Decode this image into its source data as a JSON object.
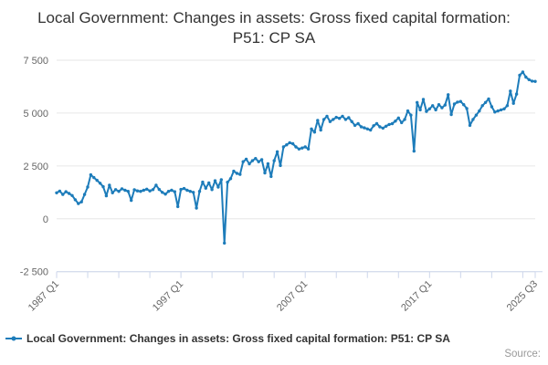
{
  "title": "Local Government: Changes in assets: Gross fixed capital formation: P51: CP SA",
  "legend": {
    "label": "Local Government: Changes in assets: Gross fixed capital formation: P51: CP SA"
  },
  "source_label": "Source:",
  "colors": {
    "line": "#1d7cba",
    "grid": "#e6e6e6",
    "axis": "#ccd6eb",
    "tick_label": "#666666",
    "title_text": "#333333",
    "legend_text": "#333333",
    "source_text": "#999999"
  },
  "chart_data": {
    "type": "line",
    "title": "Local Government: Changes in assets: Gross fixed capital formation: P51: CP SA",
    "series_name": "Local Government: Changes in assets: Gross fixed capital formation: P51: CP SA",
    "frequency": "quarterly",
    "x_start": "1987 Q1",
    "x_end": "2025 Q3",
    "x_tick_labels": [
      {
        "label": "1987 Q1",
        "index": 0
      },
      {
        "label": "1997 Q1",
        "index": 40
      },
      {
        "label": "2007 Q1",
        "index": 80
      },
      {
        "label": "2017 Q1",
        "index": 120
      },
      {
        "label": "2025 Q3",
        "index": 154
      }
    ],
    "minor_tick_every": 10,
    "y_ticks": [
      -2500,
      0,
      2500,
      5000,
      7500
    ],
    "ylim": [
      -2500,
      7500
    ],
    "grid": true,
    "legend_position": "bottom-left",
    "values": [
      1230,
      1310,
      1150,
      1280,
      1200,
      1100,
      900,
      720,
      800,
      1150,
      1500,
      2080,
      1950,
      1820,
      1680,
      1520,
      1085,
      1590,
      1230,
      1380,
      1300,
      1420,
      1350,
      1300,
      870,
      1375,
      1320,
      1300,
      1350,
      1400,
      1320,
      1380,
      1590,
      1390,
      1250,
      1170,
      1300,
      1350,
      1280,
      577,
      1390,
      1430,
      1350,
      1300,
      1250,
      507,
      1300,
      1735,
      1450,
      1700,
      1380,
      1800,
      1500,
      1850,
      -1150,
      1730,
      1900,
      2250,
      2150,
      2100,
      2700,
      2817,
      2600,
      2750,
      2850,
      2700,
      2800,
      2170,
      2600,
      2000,
      2750,
      3170,
      2520,
      3400,
      3500,
      3600,
      3550,
      3400,
      3300,
      3350,
      3400,
      3300,
      4250,
      4100,
      4650,
      4200,
      4700,
      4850,
      4600,
      4700,
      4800,
      4750,
      4850,
      4700,
      4780,
      4600,
      4420,
      4500,
      4350,
      4300,
      4250,
      4200,
      4400,
      4500,
      4350,
      4290,
      4380,
      4460,
      4500,
      4620,
      4766,
      4550,
      4700,
      5100,
      4900,
      3200,
      5500,
      5150,
      5650,
      5080,
      5200,
      5350,
      5150,
      5400,
      5250,
      5380,
      5870,
      4930,
      5430,
      5520,
      5550,
      5400,
      5217,
      4420,
      4700,
      4900,
      5100,
      5350,
      5500,
      5670,
      5300,
      5050,
      5100,
      5150,
      5200,
      5350,
      6040,
      5465,
      5900,
      6790,
      6940,
      6700,
      6580,
      6510,
      6500
    ]
  }
}
